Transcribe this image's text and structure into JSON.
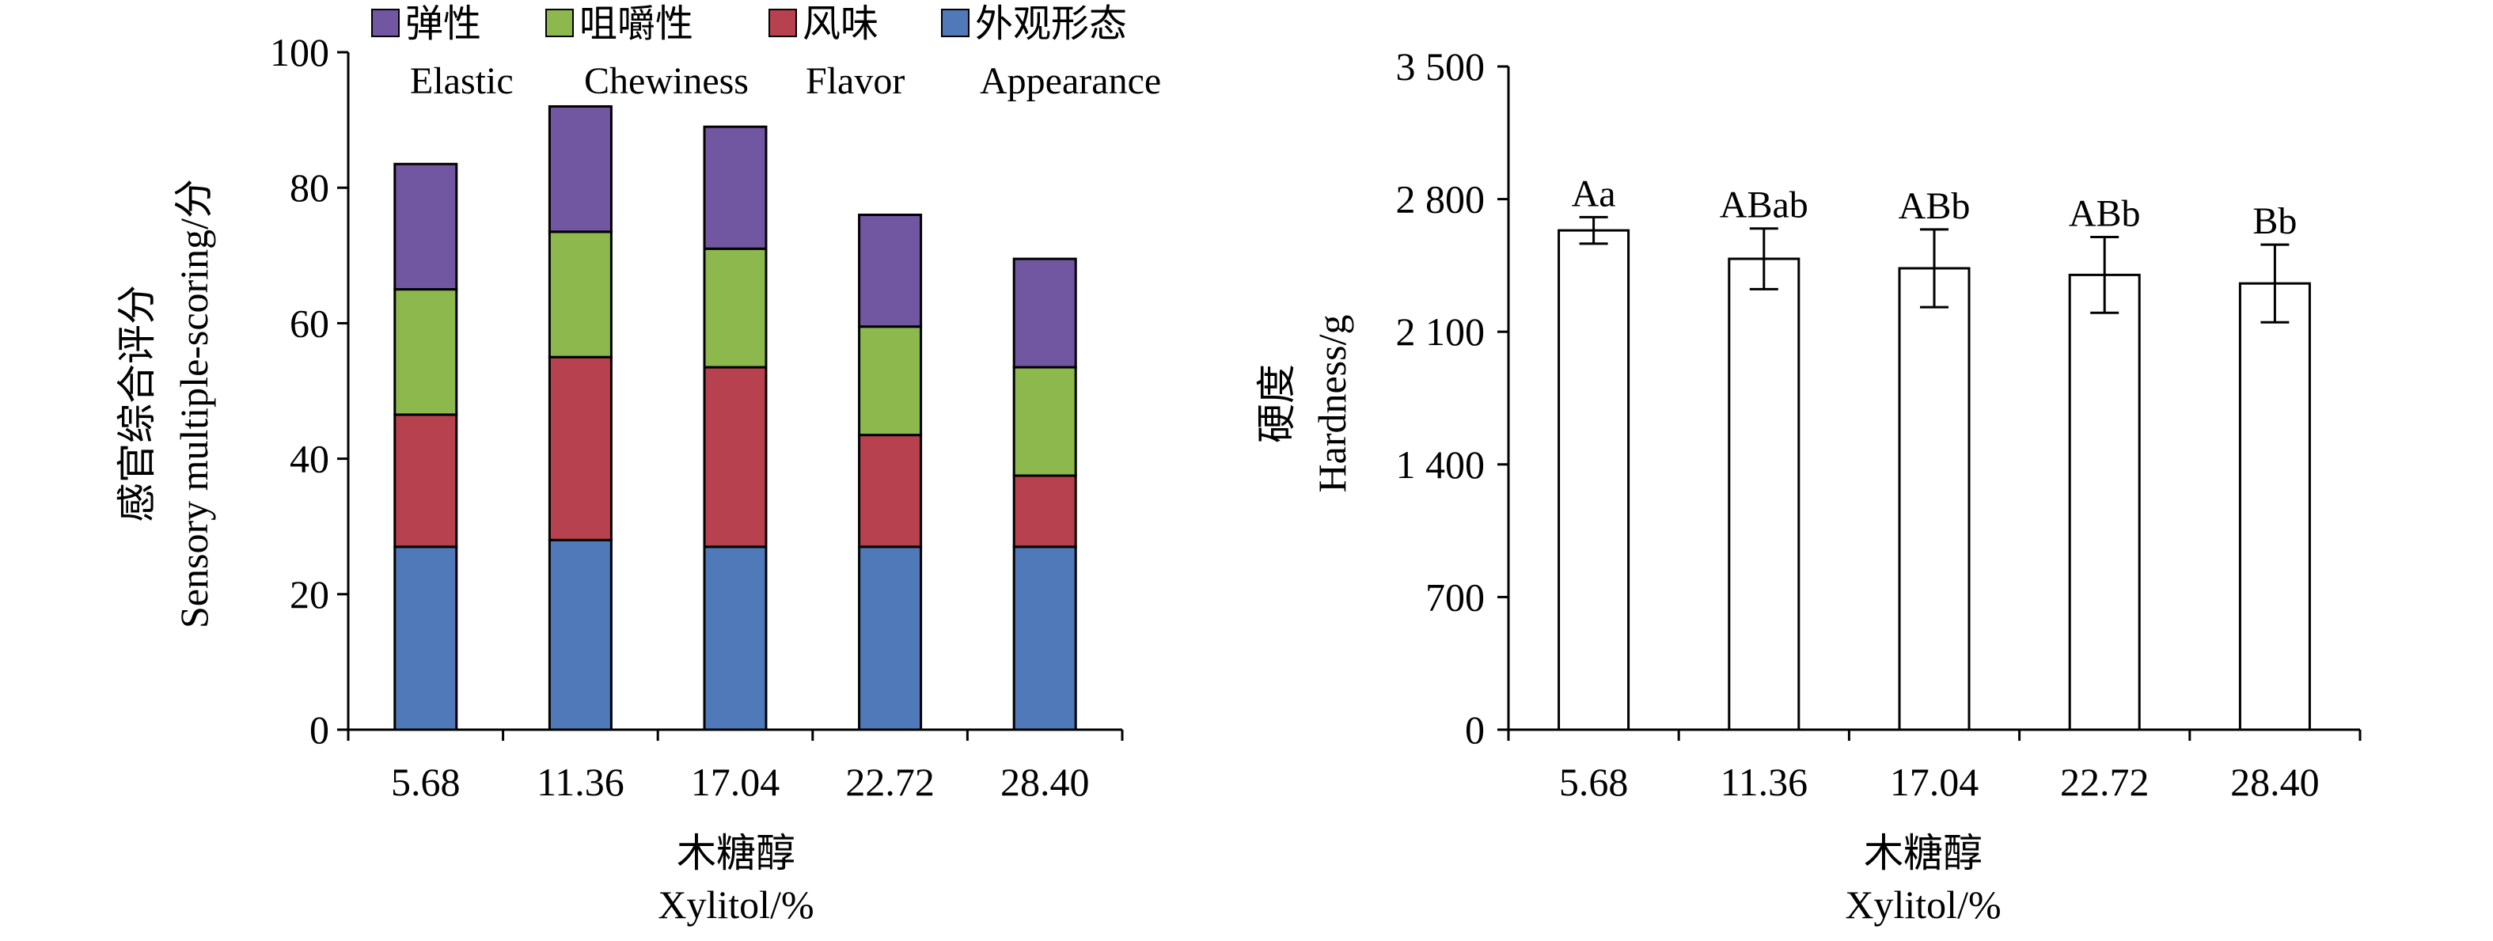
{
  "chart_data": [
    {
      "type": "bar",
      "stacked": true,
      "categories": [
        "5.68",
        "11.36",
        "17.04",
        "22.72",
        "28.40"
      ],
      "series": [
        {
          "name": "外观形态",
          "name_en": "Appearance",
          "color": "#4f79b8",
          "values": [
            27,
            28,
            27,
            27,
            27
          ]
        },
        {
          "name": "风味",
          "name_en": "Flavor",
          "color": "#b8414f",
          "values": [
            19.5,
            27,
            26.5,
            16.5,
            10.5
          ]
        },
        {
          "name": "咀嚼性",
          "name_en": "Chewiness",
          "color": "#8cb84e",
          "values": [
            18.5,
            18.5,
            17.5,
            16,
            16
          ]
        },
        {
          "name": "弹性",
          "name_en": "Elastic",
          "color": "#7157a2",
          "values": [
            18.5,
            18.5,
            18,
            16.5,
            16
          ]
        }
      ],
      "totals": [
        83.5,
        92,
        89,
        76,
        69.5
      ],
      "xlabel_cn": "木糖醇",
      "xlabel_en": "Xylitol/%",
      "ylabel_cn": "感官综合评分",
      "ylabel_en": "Sensory multiple-scoring/分",
      "ylim": [
        0,
        100
      ],
      "yticks": [
        "0",
        "20",
        "40",
        "60",
        "80",
        "100"
      ],
      "legend_position": "top",
      "grid": false
    },
    {
      "type": "bar",
      "categories": [
        "5.68",
        "11.36",
        "17.04",
        "22.72",
        "28.40"
      ],
      "values": [
        2635,
        2485,
        2435,
        2400,
        2355
      ],
      "errors": [
        70,
        160,
        205,
        200,
        205
      ],
      "significance_labels": [
        "Aa",
        "ABab",
        "ABb",
        "ABb",
        "Bb"
      ],
      "bar_fill": "#ffffff",
      "xlabel_cn": "木糖醇",
      "xlabel_en": "Xylitol/%",
      "ylabel_cn": "硬度",
      "ylabel_en": "Hardness/g",
      "ylim": [
        0,
        3500
      ],
      "yticks": [
        "0",
        "700",
        "1 400",
        "2 100",
        "2 800",
        "3 500"
      ],
      "ytick_values": [
        0,
        700,
        1400,
        2100,
        2800,
        3500
      ],
      "grid": false
    }
  ]
}
